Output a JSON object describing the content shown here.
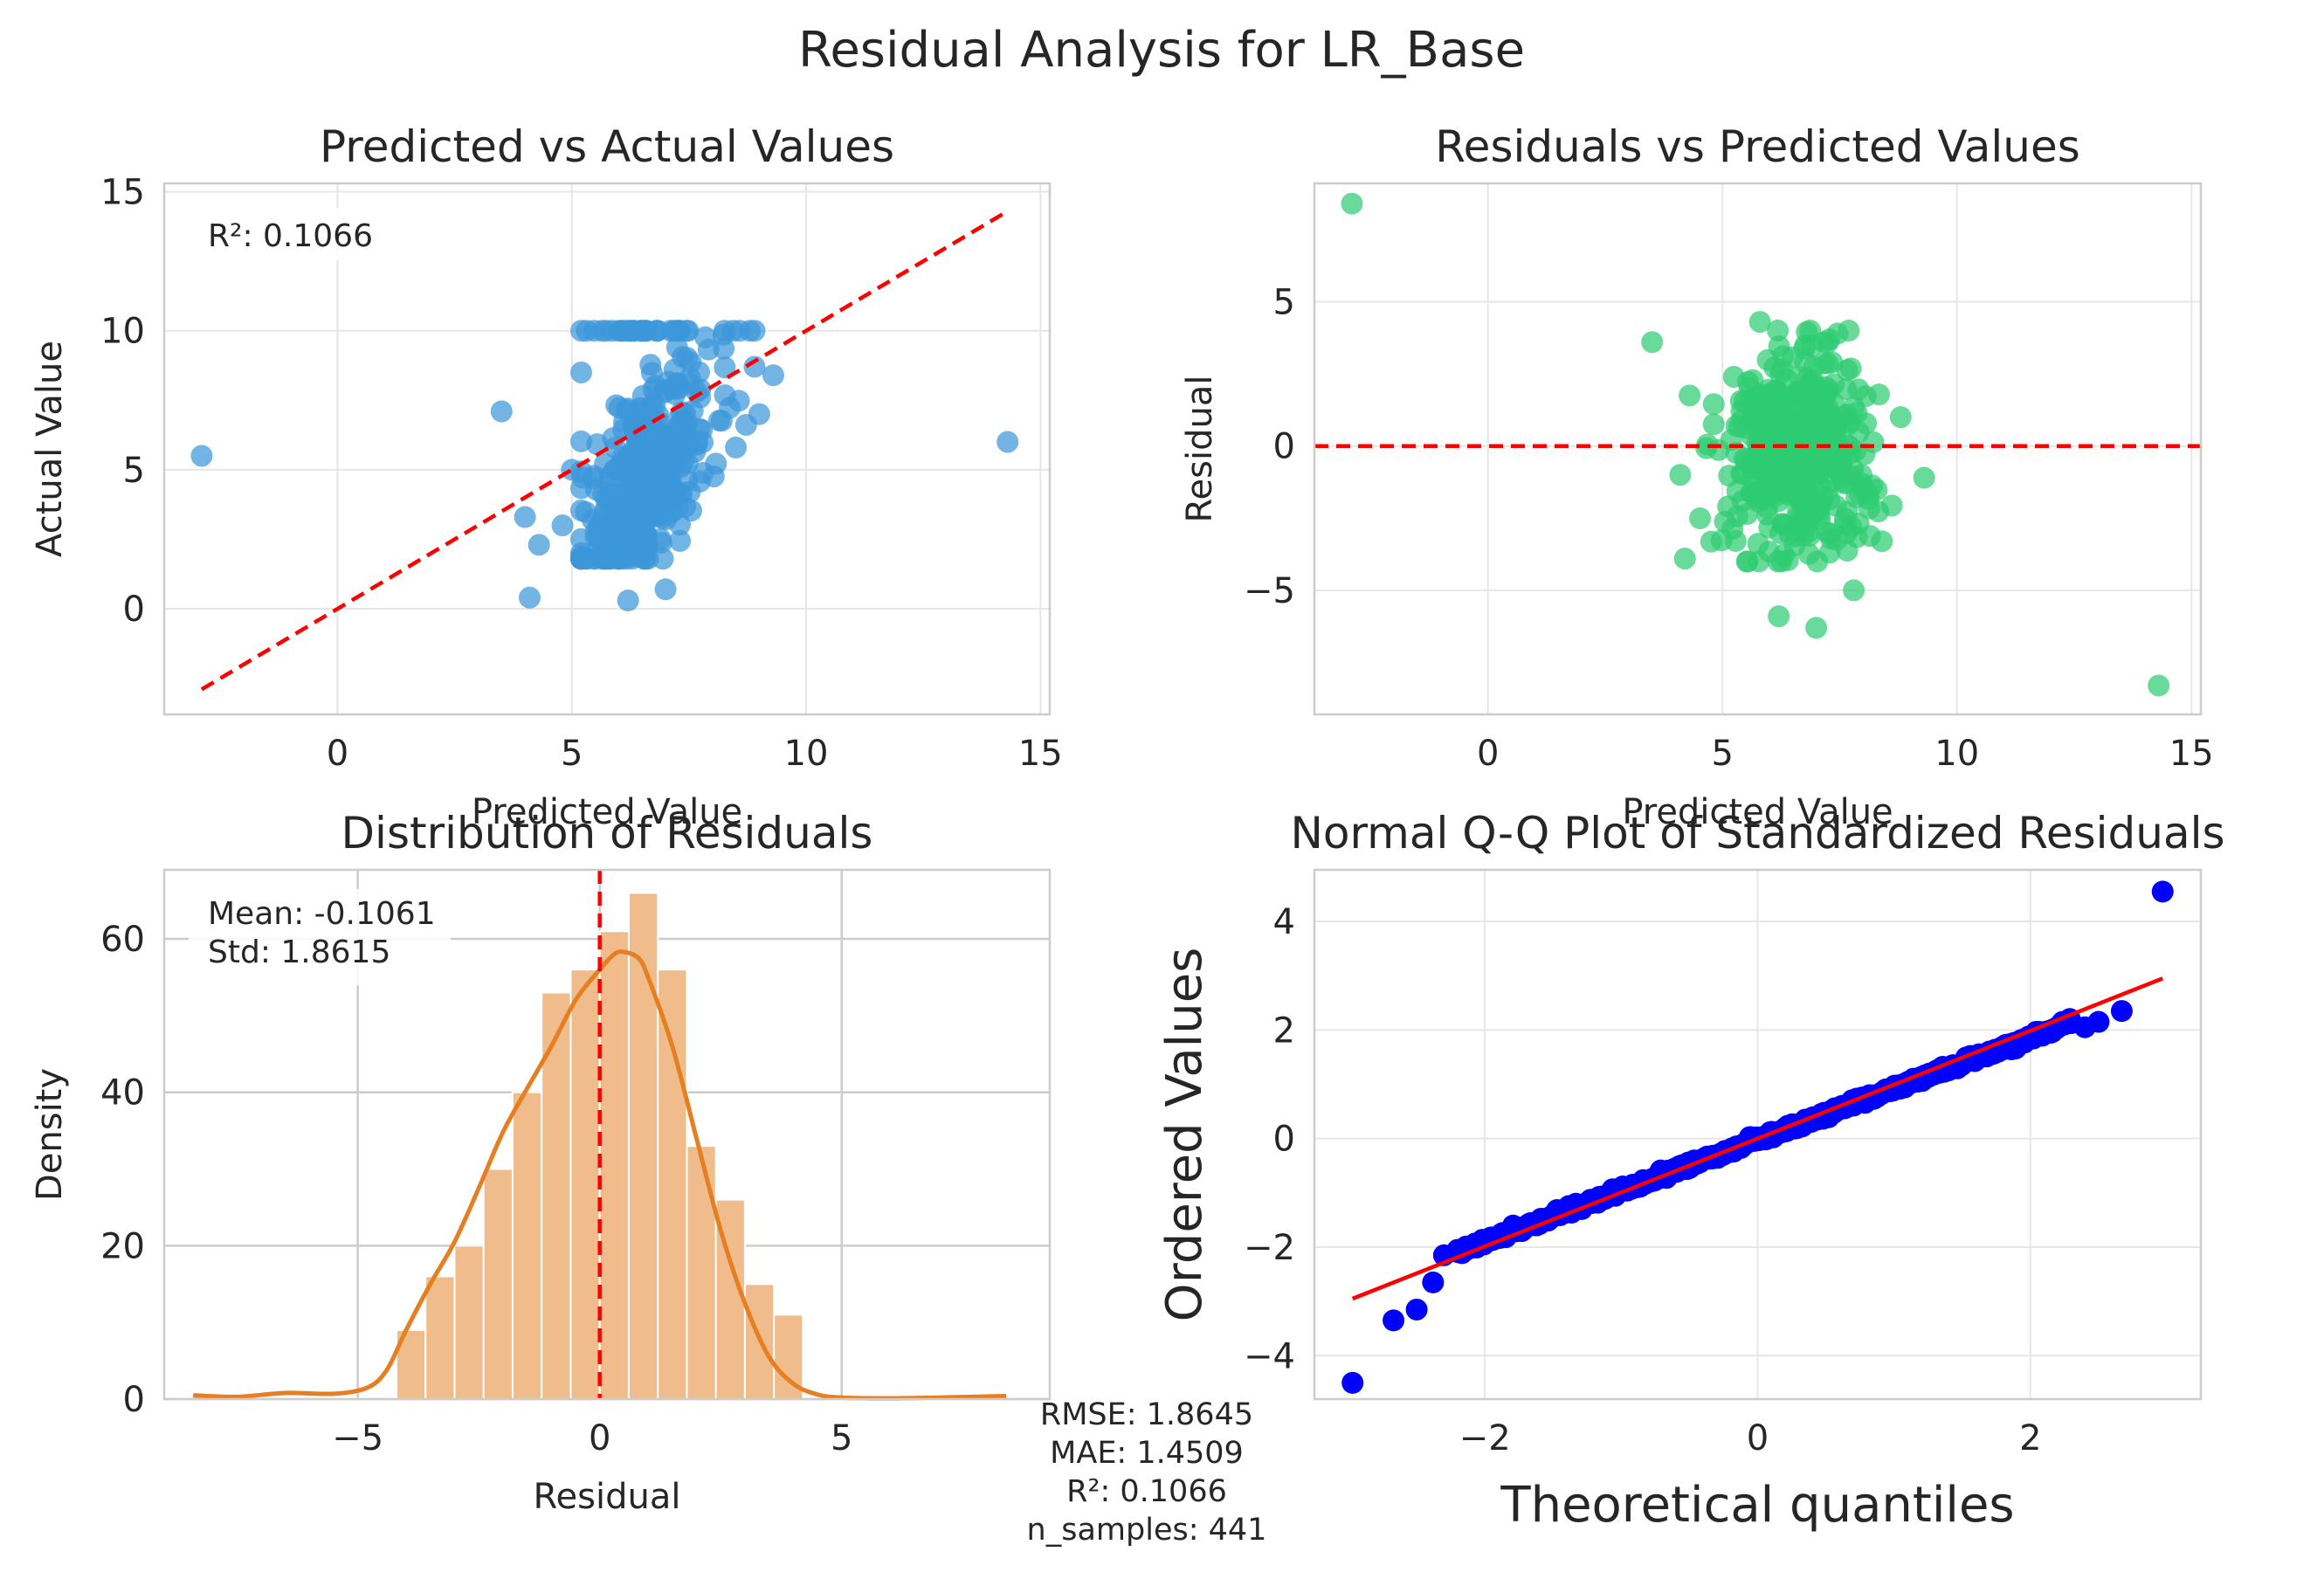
{
  "figure": {
    "suptitle": "Residual Analysis for LR_Base",
    "metrics_box": [
      "RMSE: 1.8645",
      "MAE: 1.4509",
      "R²: 0.1066",
      "n_samples: 441"
    ]
  },
  "colors": {
    "scatter_blue": "#3b97d9",
    "scatter_green": "#2ecc71",
    "hist_fill": "#f0bc8b",
    "hist_kde": "#e67e22",
    "ref_red": "#ff0000",
    "qq_points": "#0000ff",
    "grid": "#e6e6e6",
    "spine": "#cccccc"
  },
  "chart_data": [
    {
      "id": "pred_vs_actual",
      "type": "scatter",
      "title": "Predicted vs Actual Values",
      "xlabel": "Predicted Value",
      "ylabel": "Actual Value",
      "xlim": [
        -3.7,
        15.2
      ],
      "ylim": [
        -3.8,
        15.3
      ],
      "xticks": [
        0,
        5,
        10,
        15
      ],
      "yticks": [
        0,
        5,
        10,
        15
      ],
      "annotation": "R²: 0.1066",
      "reference_line": {
        "x": [
          -2.9,
          14.3
        ],
        "y": [
          -2.9,
          14.3
        ],
        "style": "dashed"
      },
      "points": [
        [
          -2.9,
          5.5
        ],
        [
          14.3,
          6.0
        ],
        [
          3.5,
          7.1
        ],
        [
          4.1,
          0.4
        ],
        [
          6.2,
          0.3
        ],
        [
          7.0,
          0.7
        ],
        [
          4.0,
          3.3
        ],
        [
          4.3,
          2.3
        ],
        [
          8.5,
          5.8
        ],
        [
          9.3,
          8.4
        ],
        [
          9.0,
          7.0
        ],
        [
          5.0,
          5.0
        ],
        [
          4.8,
          3.0
        ],
        [
          5.2,
          8.5
        ],
        [
          8.8,
          10.0
        ]
      ],
      "cloud": {
        "n": 420,
        "x_center": 6.6,
        "x_spread": 1.05,
        "y_min": 1.8,
        "y_max": 10.0,
        "slope_hint": 1.0
      }
    },
    {
      "id": "resid_vs_pred",
      "type": "scatter",
      "title": "Residuals vs Predicted Values",
      "xlabel": "Predicted Value",
      "ylabel": "Residual",
      "xlim": [
        -3.7,
        15.2
      ],
      "ylim": [
        -9.3,
        9.1
      ],
      "xticks": [
        0,
        5,
        10,
        15
      ],
      "yticks": [
        -5,
        0,
        5
      ],
      "reference_line": {
        "y": 0,
        "style": "dashed"
      },
      "points": [
        [
          -2.9,
          8.4
        ],
        [
          14.3,
          -8.3
        ],
        [
          3.5,
          3.6
        ],
        [
          4.2,
          -3.9
        ],
        [
          6.2,
          -5.9
        ],
        [
          7.0,
          -6.3
        ],
        [
          7.8,
          -5.0
        ],
        [
          8.4,
          -3.3
        ],
        [
          5.8,
          4.3
        ],
        [
          9.3,
          -1.1
        ],
        [
          8.8,
          1.0
        ],
        [
          4.1,
          -1.0
        ]
      ],
      "cloud": {
        "n": 420,
        "x_center": 6.6,
        "x_spread": 1.05,
        "y_spread": 1.75
      }
    },
    {
      "id": "resid_hist",
      "type": "bar",
      "title": "Distribution of Residuals",
      "xlabel": "Residual",
      "ylabel": "Density",
      "xlim": [
        -9.0,
        9.3
      ],
      "ylim": [
        0,
        69
      ],
      "xticks": [
        -5,
        0,
        5
      ],
      "yticks": [
        0,
        20,
        40,
        60
      ],
      "annotation": [
        "Mean: -0.1061",
        "Std: 1.8615"
      ],
      "mean_line": 0,
      "bin_edges": [
        -4.2,
        -3.6,
        -3.0,
        -2.4,
        -1.8,
        -1.2,
        -0.6,
        0.0,
        0.6,
        1.2,
        1.8,
        2.4,
        3.0,
        3.6,
        4.2
      ],
      "counts": [
        9,
        16,
        20,
        30,
        40,
        53,
        56,
        61,
        66,
        56,
        33,
        26,
        15,
        11
      ],
      "outlier_bins": [
        {
          "left": -8.4,
          "right": -7.8,
          "count": 0.5
        },
        {
          "left": 7.8,
          "right": 8.4,
          "count": 0.5
        }
      ],
      "kde": {
        "x": [
          -8.4,
          -7.5,
          -6.5,
          -5.5,
          -4.8,
          -4.4,
          -4.0,
          -3.5,
          -3.0,
          -2.5,
          -2.0,
          -1.5,
          -1.0,
          -0.5,
          0.0,
          0.3,
          0.5,
          0.8,
          1.0,
          1.5,
          2.0,
          2.5,
          3.0,
          3.5,
          4.0,
          4.5,
          5.0,
          6.0,
          7.0,
          8.4
        ],
        "y": [
          0.5,
          0.3,
          0.8,
          0.7,
          1.5,
          3.8,
          9.0,
          15.0,
          20.5,
          27.5,
          34.8,
          40.5,
          46.0,
          52.0,
          56.0,
          58.0,
          58.3,
          57.5,
          55.0,
          46.0,
          34.0,
          22.0,
          12.5,
          5.5,
          2.0,
          0.6,
          0.2,
          0.1,
          0.2,
          0.4
        ]
      }
    },
    {
      "id": "qq_plot",
      "type": "scatter",
      "title": "Normal Q-Q Plot of Standardized Residuals",
      "xlabel": "Theoretical quantiles",
      "ylabel": "Ordered Values",
      "xlim": [
        -3.25,
        3.25
      ],
      "ylim": [
        -4.8,
        4.95
      ],
      "xticks": [
        -2,
        0,
        2
      ],
      "yticks": [
        -4,
        -2,
        0,
        2,
        4
      ],
      "fit_line": {
        "x": [
          -2.97,
          2.97
        ],
        "y": [
          -2.95,
          2.95
        ]
      },
      "points": [
        [
          -2.97,
          -4.5
        ],
        [
          -2.67,
          -3.35
        ],
        [
          -2.5,
          -3.15
        ],
        [
          -2.38,
          -2.65
        ],
        [
          -2.3,
          -2.15
        ],
        [
          -2.2,
          -2.05
        ],
        [
          2.4,
          2.05
        ],
        [
          2.5,
          2.15
        ],
        [
          2.67,
          2.35
        ],
        [
          2.97,
          4.55
        ]
      ],
      "band": {
        "n": 421,
        "q_min": -2.2,
        "q_max": 2.3,
        "slope": 0.94,
        "intercept": -0.02
      }
    }
  ]
}
